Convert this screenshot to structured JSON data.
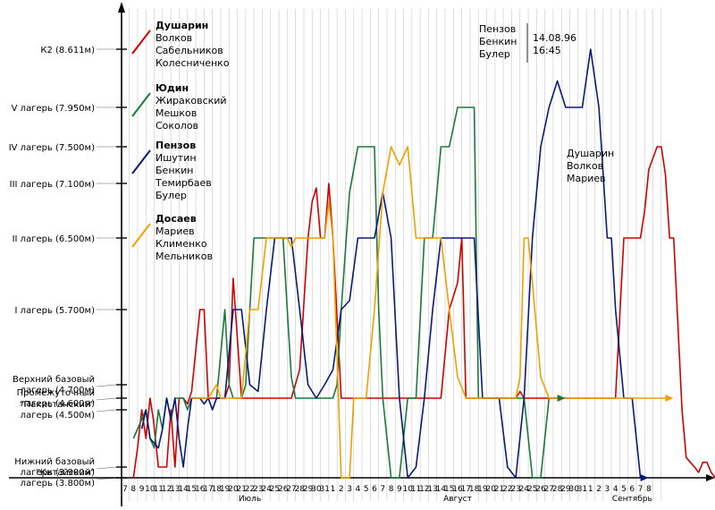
{
  "chart_data": {
    "type": "line",
    "y_levels": [
      {
        "value": 3800,
        "lines": [
          "\"Китайский\"",
          "лагерь (3.800м)"
        ]
      },
      {
        "value": 3900,
        "lines": [
          "Нижний базовый",
          "лагерь (3.900м)"
        ]
      },
      {
        "value": 4500,
        "lines": [
          "\"Пакистанский\"",
          "лагерь (4.500м)"
        ]
      },
      {
        "value": 4600,
        "lines": [
          "Промежуточный",
          "лагерь (4.600м)"
        ]
      },
      {
        "value": 4700,
        "lines": [
          "Верхний базовый",
          "лагерь (4.700м)"
        ]
      },
      {
        "value": 5700,
        "lines": [
          "I лагерь (5.700м)"
        ]
      },
      {
        "value": 6500,
        "lines": [
          "II лагерь (6.500м)"
        ]
      },
      {
        "value": 7100,
        "lines": [
          "III лагерь (7.100м)"
        ]
      },
      {
        "value": 7500,
        "lines": [
          "IV лагерь (7.500м)"
        ]
      },
      {
        "value": 7950,
        "lines": [
          "V лагерь (7.950м)"
        ]
      },
      {
        "value": 8611,
        "lines": [
          "К2 (8.611м)"
        ]
      }
    ],
    "x_day_labels": [
      "7",
      "8",
      "9",
      "10",
      "11",
      "12",
      "13",
      "14",
      "15",
      "16",
      "17",
      "18",
      "19",
      "20",
      "21",
      "22",
      "23",
      "24",
      "25",
      "26",
      "27",
      "28",
      "29",
      "30",
      "31",
      "1",
      "2",
      "3",
      "4",
      "5",
      "6",
      "7",
      "8",
      "9",
      "10",
      "11",
      "12",
      "13",
      "14",
      "15",
      "16",
      "17",
      "18",
      "19",
      "20",
      "21",
      "22",
      "23",
      "24",
      "25",
      "26",
      "27",
      "28",
      "29",
      "30",
      "31",
      "1",
      "2",
      "3",
      "4",
      "5",
      "6",
      "7",
      "8"
    ],
    "months": [
      {
        "label": "Июль",
        "day": 15
      },
      {
        "label": "Август",
        "day": 40
      },
      {
        "label": "Сентябрь",
        "day": 61
      }
    ],
    "series": [
      {
        "name": "Душарин",
        "members": [
          "Волков",
          "Сабельников",
          "Колесниченко"
        ],
        "color": "#d40000",
        "points": [
          [
            1,
            3800
          ],
          [
            1.5,
            4100
          ],
          [
            2,
            4500
          ],
          [
            2.5,
            4200
          ],
          [
            3,
            4600
          ],
          [
            3.4,
            4400
          ],
          [
            4,
            3900
          ],
          [
            5,
            3900
          ],
          [
            5.5,
            4500
          ],
          [
            6,
            3900
          ],
          [
            6.5,
            4600
          ],
          [
            7,
            4600
          ],
          [
            7.5,
            4550
          ],
          [
            8,
            4650
          ],
          [
            9,
            5700
          ],
          [
            9.5,
            5700
          ],
          [
            10,
            4600
          ],
          [
            11,
            4600
          ],
          [
            12,
            4600
          ],
          [
            12.5,
            4700
          ],
          [
            13,
            6050
          ],
          [
            14,
            4600
          ],
          [
            15,
            4600
          ],
          [
            19,
            4600
          ],
          [
            20,
            4600
          ],
          [
            21,
            4900
          ],
          [
            22,
            6500
          ],
          [
            22.5,
            6900
          ],
          [
            23,
            7050
          ],
          [
            23.5,
            6500
          ],
          [
            24,
            6500
          ],
          [
            24.5,
            7100
          ],
          [
            25,
            6500
          ],
          [
            26,
            4600
          ],
          [
            38,
            4600
          ],
          [
            39,
            5700
          ],
          [
            40,
            6000
          ],
          [
            40.5,
            6500
          ],
          [
            41,
            4600
          ],
          [
            46,
            4600
          ],
          [
            47,
            4600
          ],
          [
            47.5,
            4650
          ],
          [
            48,
            4600
          ],
          [
            56,
            4600
          ],
          [
            57,
            4600
          ],
          [
            58,
            4600
          ],
          [
            59,
            4600
          ],
          [
            60,
            6500
          ],
          [
            61,
            6500
          ],
          [
            62,
            6500
          ],
          [
            62.5,
            6800
          ],
          [
            63,
            7250
          ],
          [
            64,
            7500
          ],
          [
            64.5,
            7500
          ],
          [
            65,
            7200
          ],
          [
            65.5,
            6500
          ],
          [
            66,
            6500
          ],
          [
            66.5,
            5500
          ],
          [
            67,
            4500
          ],
          [
            67.5,
            4000
          ],
          [
            68,
            3950
          ],
          [
            68.5,
            3900
          ],
          [
            69,
            3850
          ],
          [
            69.5,
            3950
          ],
          [
            70,
            3950
          ],
          [
            70.5,
            3850
          ],
          [
            71,
            3800
          ],
          [
            76,
            3800
          ]
        ]
      },
      {
        "name": "Юдин",
        "members": [
          "Жираковский",
          "Мешков",
          "Соколов"
        ],
        "color": "#1a7a3a",
        "points": [
          [
            1,
            4200
          ],
          [
            2.5,
            4500
          ],
          [
            3,
            4200
          ],
          [
            3.5,
            4100
          ],
          [
            4,
            4500
          ],
          [
            4.5,
            4300
          ],
          [
            5,
            4600
          ],
          [
            5.5,
            4400
          ],
          [
            6,
            4600
          ],
          [
            7,
            4600
          ],
          [
            7.5,
            4500
          ],
          [
            8,
            4600
          ],
          [
            9,
            4600
          ],
          [
            10,
            4600
          ],
          [
            10.5,
            4500
          ],
          [
            11,
            4600
          ],
          [
            12,
            5700
          ],
          [
            12.5,
            4700
          ],
          [
            13,
            4600
          ],
          [
            14,
            4600
          ],
          [
            14.5,
            4700
          ],
          [
            15,
            5700
          ],
          [
            15.5,
            6500
          ],
          [
            16,
            6500
          ],
          [
            17,
            6500
          ],
          [
            18,
            6500
          ],
          [
            19,
            6500
          ],
          [
            19.5,
            5700
          ],
          [
            20,
            4800
          ],
          [
            20.5,
            4600
          ],
          [
            21,
            4600
          ],
          [
            22,
            4600
          ],
          [
            23,
            4600
          ],
          [
            24,
            4600
          ],
          [
            25,
            4600
          ],
          [
            25.5,
            4700
          ],
          [
            26,
            5700
          ],
          [
            27,
            7000
          ],
          [
            28,
            7500
          ],
          [
            29,
            7500
          ],
          [
            30,
            7500
          ],
          [
            30.5,
            5700
          ],
          [
            31,
            4600
          ],
          [
            32,
            3800
          ],
          [
            33,
            3800
          ],
          [
            34,
            4600
          ],
          [
            35,
            4600
          ],
          [
            36,
            6500
          ],
          [
            37,
            6500
          ],
          [
            38,
            7500
          ],
          [
            39,
            7500
          ],
          [
            40,
            7950
          ],
          [
            41,
            7950
          ],
          [
            42,
            7950
          ],
          [
            42.5,
            4600
          ],
          [
            43,
            4600
          ],
          [
            44,
            4600
          ],
          [
            45,
            4600
          ],
          [
            46,
            4600
          ],
          [
            47,
            4600
          ],
          [
            48,
            4600
          ],
          [
            49,
            3800
          ],
          [
            50,
            3800
          ],
          [
            51,
            4600
          ],
          [
            52,
            4600
          ]
        ]
      },
      {
        "name": "Пензов",
        "members": [
          "Ишутин",
          "Бенкин",
          "Темирбаев",
          "Булер"
        ],
        "color": "#0a1a7a",
        "points": [
          [
            2,
            4300
          ],
          [
            2.5,
            4500
          ],
          [
            3,
            4200
          ],
          [
            4,
            4100
          ],
          [
            4.5,
            4300
          ],
          [
            5,
            4600
          ],
          [
            5.5,
            4400
          ],
          [
            6,
            4600
          ],
          [
            6.5,
            4200
          ],
          [
            7,
            3900
          ],
          [
            7.5,
            4300
          ],
          [
            8,
            4600
          ],
          [
            9,
            4600
          ],
          [
            9.5,
            4550
          ],
          [
            10,
            4600
          ],
          [
            10.5,
            4500
          ],
          [
            11,
            4600
          ],
          [
            12,
            4600
          ],
          [
            13,
            5700
          ],
          [
            14,
            5700
          ],
          [
            15,
            4700
          ],
          [
            16,
            4650
          ],
          [
            17,
            5700
          ],
          [
            18,
            6500
          ],
          [
            19,
            6500
          ],
          [
            20,
            6500
          ],
          [
            21,
            5700
          ],
          [
            22,
            4700
          ],
          [
            23,
            4600
          ],
          [
            24,
            4700
          ],
          [
            25,
            4900
          ],
          [
            26,
            5700
          ],
          [
            27,
            5800
          ],
          [
            28,
            6500
          ],
          [
            29,
            6500
          ],
          [
            30,
            6500
          ],
          [
            31,
            7000
          ],
          [
            32,
            6500
          ],
          [
            33,
            4600
          ],
          [
            34,
            3800
          ],
          [
            35,
            3900
          ],
          [
            36,
            4600
          ],
          [
            37,
            5700
          ],
          [
            38,
            6500
          ],
          [
            39,
            6500
          ],
          [
            40,
            6500
          ],
          [
            41,
            6500
          ],
          [
            42,
            6500
          ],
          [
            43,
            4600
          ],
          [
            44,
            4600
          ],
          [
            45,
            4600
          ],
          [
            46,
            3900
          ],
          [
            47,
            3800
          ],
          [
            48,
            4600
          ],
          [
            49,
            6500
          ],
          [
            50,
            7500
          ],
          [
            51,
            7950
          ],
          [
            52,
            8250
          ],
          [
            53,
            7950
          ],
          [
            54,
            7950
          ],
          [
            55,
            7950
          ],
          [
            56,
            8611
          ],
          [
            57,
            7950
          ],
          [
            58,
            6500
          ],
          [
            58.5,
            6500
          ],
          [
            59,
            5700
          ],
          [
            60,
            4600
          ],
          [
            61,
            4600
          ],
          [
            62,
            3800
          ]
        ]
      },
      {
        "name": "Досаев",
        "members": [
          "Мариев",
          "Клименко",
          "Мельников"
        ],
        "color": "#f0a000",
        "points": [
          [
            8,
            4600
          ],
          [
            9,
            4600
          ],
          [
            10,
            4600
          ],
          [
            11,
            4700
          ],
          [
            11.5,
            4600
          ],
          [
            12,
            4600
          ],
          [
            13,
            4600
          ],
          [
            14,
            4600
          ],
          [
            15,
            5700
          ],
          [
            16,
            5700
          ],
          [
            17,
            6500
          ],
          [
            18,
            6500
          ],
          [
            19,
            6500
          ],
          [
            19.5,
            6500
          ],
          [
            20,
            6400
          ],
          [
            20.5,
            6500
          ],
          [
            21,
            6500
          ],
          [
            22,
            6500
          ],
          [
            23,
            6500
          ],
          [
            24,
            6500
          ],
          [
            24.5,
            6900
          ],
          [
            25,
            6500
          ],
          [
            26,
            3800
          ],
          [
            27,
            3800
          ],
          [
            27.5,
            4600
          ],
          [
            28,
            4600
          ],
          [
            29,
            4600
          ],
          [
            30,
            5700
          ],
          [
            31,
            7000
          ],
          [
            32,
            7500
          ],
          [
            33,
            7300
          ],
          [
            34,
            7500
          ],
          [
            35,
            6500
          ],
          [
            36,
            6500
          ],
          [
            37,
            6500
          ],
          [
            38,
            6500
          ],
          [
            39,
            5700
          ],
          [
            40,
            4800
          ],
          [
            41,
            4600
          ],
          [
            42,
            4600
          ],
          [
            43,
            4600
          ],
          [
            44,
            4600
          ],
          [
            45,
            4600
          ],
          [
            46,
            4600
          ],
          [
            47,
            4600
          ],
          [
            47.5,
            4800
          ],
          [
            48,
            6500
          ],
          [
            48.5,
            6500
          ],
          [
            49,
            6000
          ],
          [
            50,
            4800
          ],
          [
            51,
            4600
          ],
          [
            52,
            4600
          ],
          [
            53,
            4600
          ],
          [
            54,
            4600
          ],
          [
            55,
            4600
          ],
          [
            56,
            4600
          ],
          [
            57,
            4600
          ],
          [
            58,
            4600
          ],
          [
            59,
            4600
          ],
          [
            60,
            4600
          ],
          [
            61,
            4600
          ],
          [
            62,
            4600
          ],
          [
            63,
            4600
          ],
          [
            64,
            4600
          ],
          [
            65,
            4600
          ]
        ]
      }
    ],
    "annotations": [
      {
        "lines": [
          "Пензов",
          "Бенкин",
          "Булер"
        ],
        "date": "14.08.96",
        "time": "16:45"
      },
      {
        "lines": [
          "Душарин",
          "Волков",
          "Мариев"
        ]
      }
    ]
  }
}
